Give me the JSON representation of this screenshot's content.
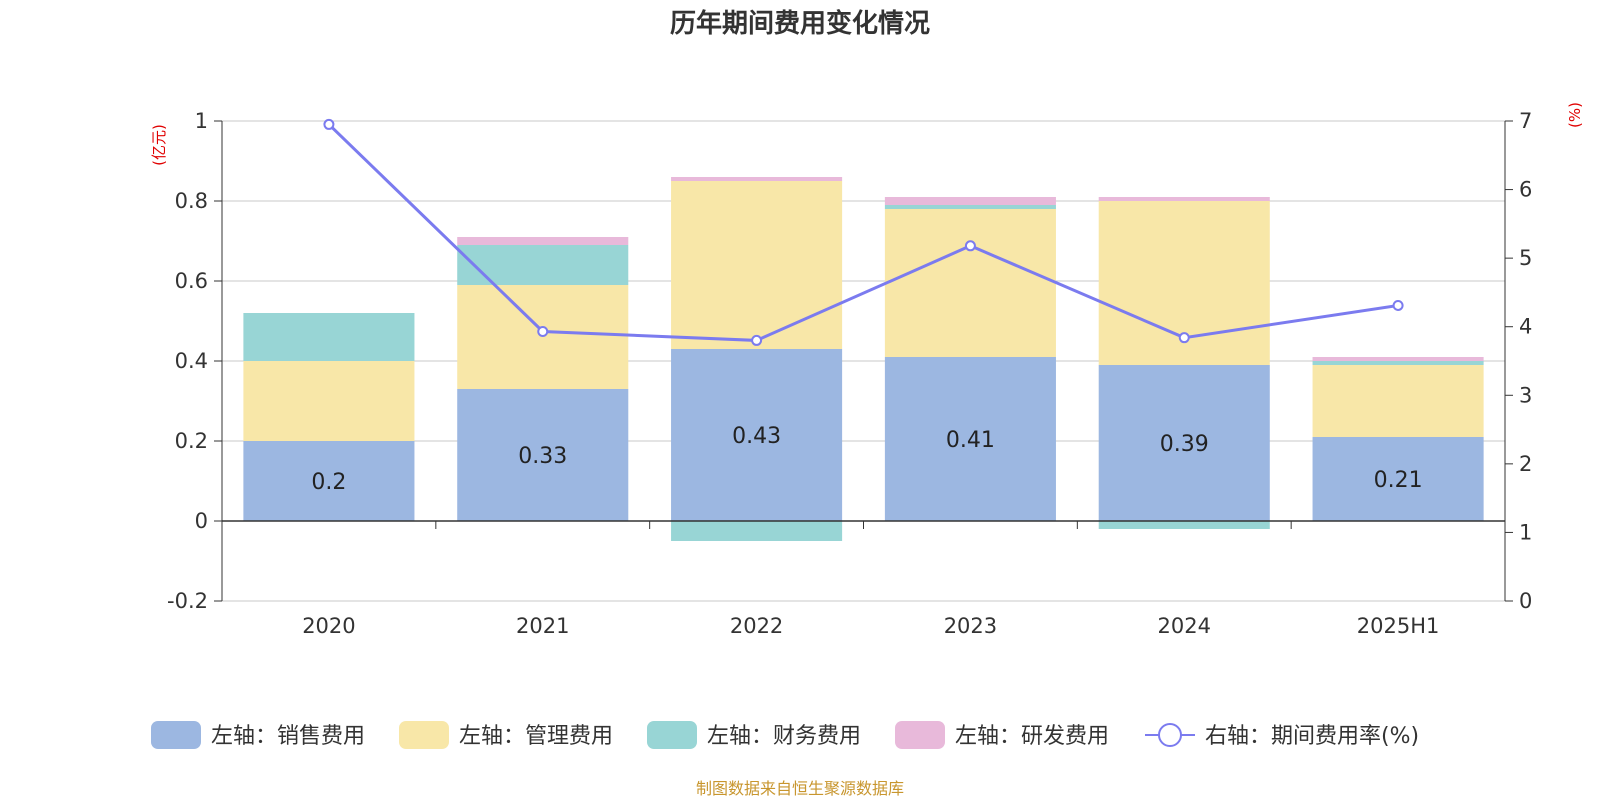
{
  "chart_data": {
    "type": "bar",
    "title": "历年期间费用变化情况",
    "categories": [
      "2020",
      "2021",
      "2022",
      "2023",
      "2024",
      "2025H1"
    ],
    "left_axis": {
      "unit": "(亿元)",
      "ylim": [
        -0.2,
        1
      ],
      "ticks": [
        -0.2,
        0,
        0.2,
        0.4,
        0.6,
        0.8,
        1
      ],
      "tick_labels": [
        "-0.2",
        "0",
        "0.2",
        "0.4",
        "0.6",
        "0.8",
        "1"
      ]
    },
    "right_axis": {
      "unit": "(%)",
      "ylim": [
        0,
        7
      ],
      "ticks": [
        0,
        1,
        2,
        3,
        4,
        5,
        6,
        7
      ],
      "tick_labels": [
        "0",
        "1",
        "2",
        "3",
        "4",
        "5",
        "6",
        "7"
      ]
    },
    "series": [
      {
        "name": "左轴：销售费用",
        "kind": "bar",
        "axis": "left",
        "color": "#9cb7e1",
        "values": [
          0.2,
          0.33,
          0.43,
          0.41,
          0.39,
          0.21
        ],
        "labels": [
          "0.2",
          "0.33",
          "0.43",
          "0.41",
          "0.39",
          "0.21"
        ]
      },
      {
        "name": "左轴：管理费用",
        "kind": "bar",
        "axis": "left",
        "color": "#f8e7a8",
        "values": [
          0.2,
          0.26,
          0.42,
          0.37,
          0.41,
          0.18
        ]
      },
      {
        "name": "左轴：财务费用",
        "kind": "bar",
        "axis": "left",
        "color": "#98d5d5",
        "values": [
          0.12,
          0.1,
          -0.05,
          0.01,
          -0.02,
          0.01
        ]
      },
      {
        "name": "左轴：研发费用",
        "kind": "bar",
        "axis": "left",
        "color": "#e8b9da",
        "values": [
          0.0,
          0.02,
          0.01,
          0.02,
          0.01,
          0.01
        ]
      },
      {
        "name": "右轴：期间费用率(%)",
        "kind": "line",
        "axis": "right",
        "color": "#7b7bef",
        "values": [
          6.95,
          3.93,
          3.8,
          5.18,
          3.84,
          4.31
        ]
      }
    ],
    "grid": true,
    "legend_position": "bottom"
  },
  "source_note": "制图数据来自恒生聚源数据库"
}
